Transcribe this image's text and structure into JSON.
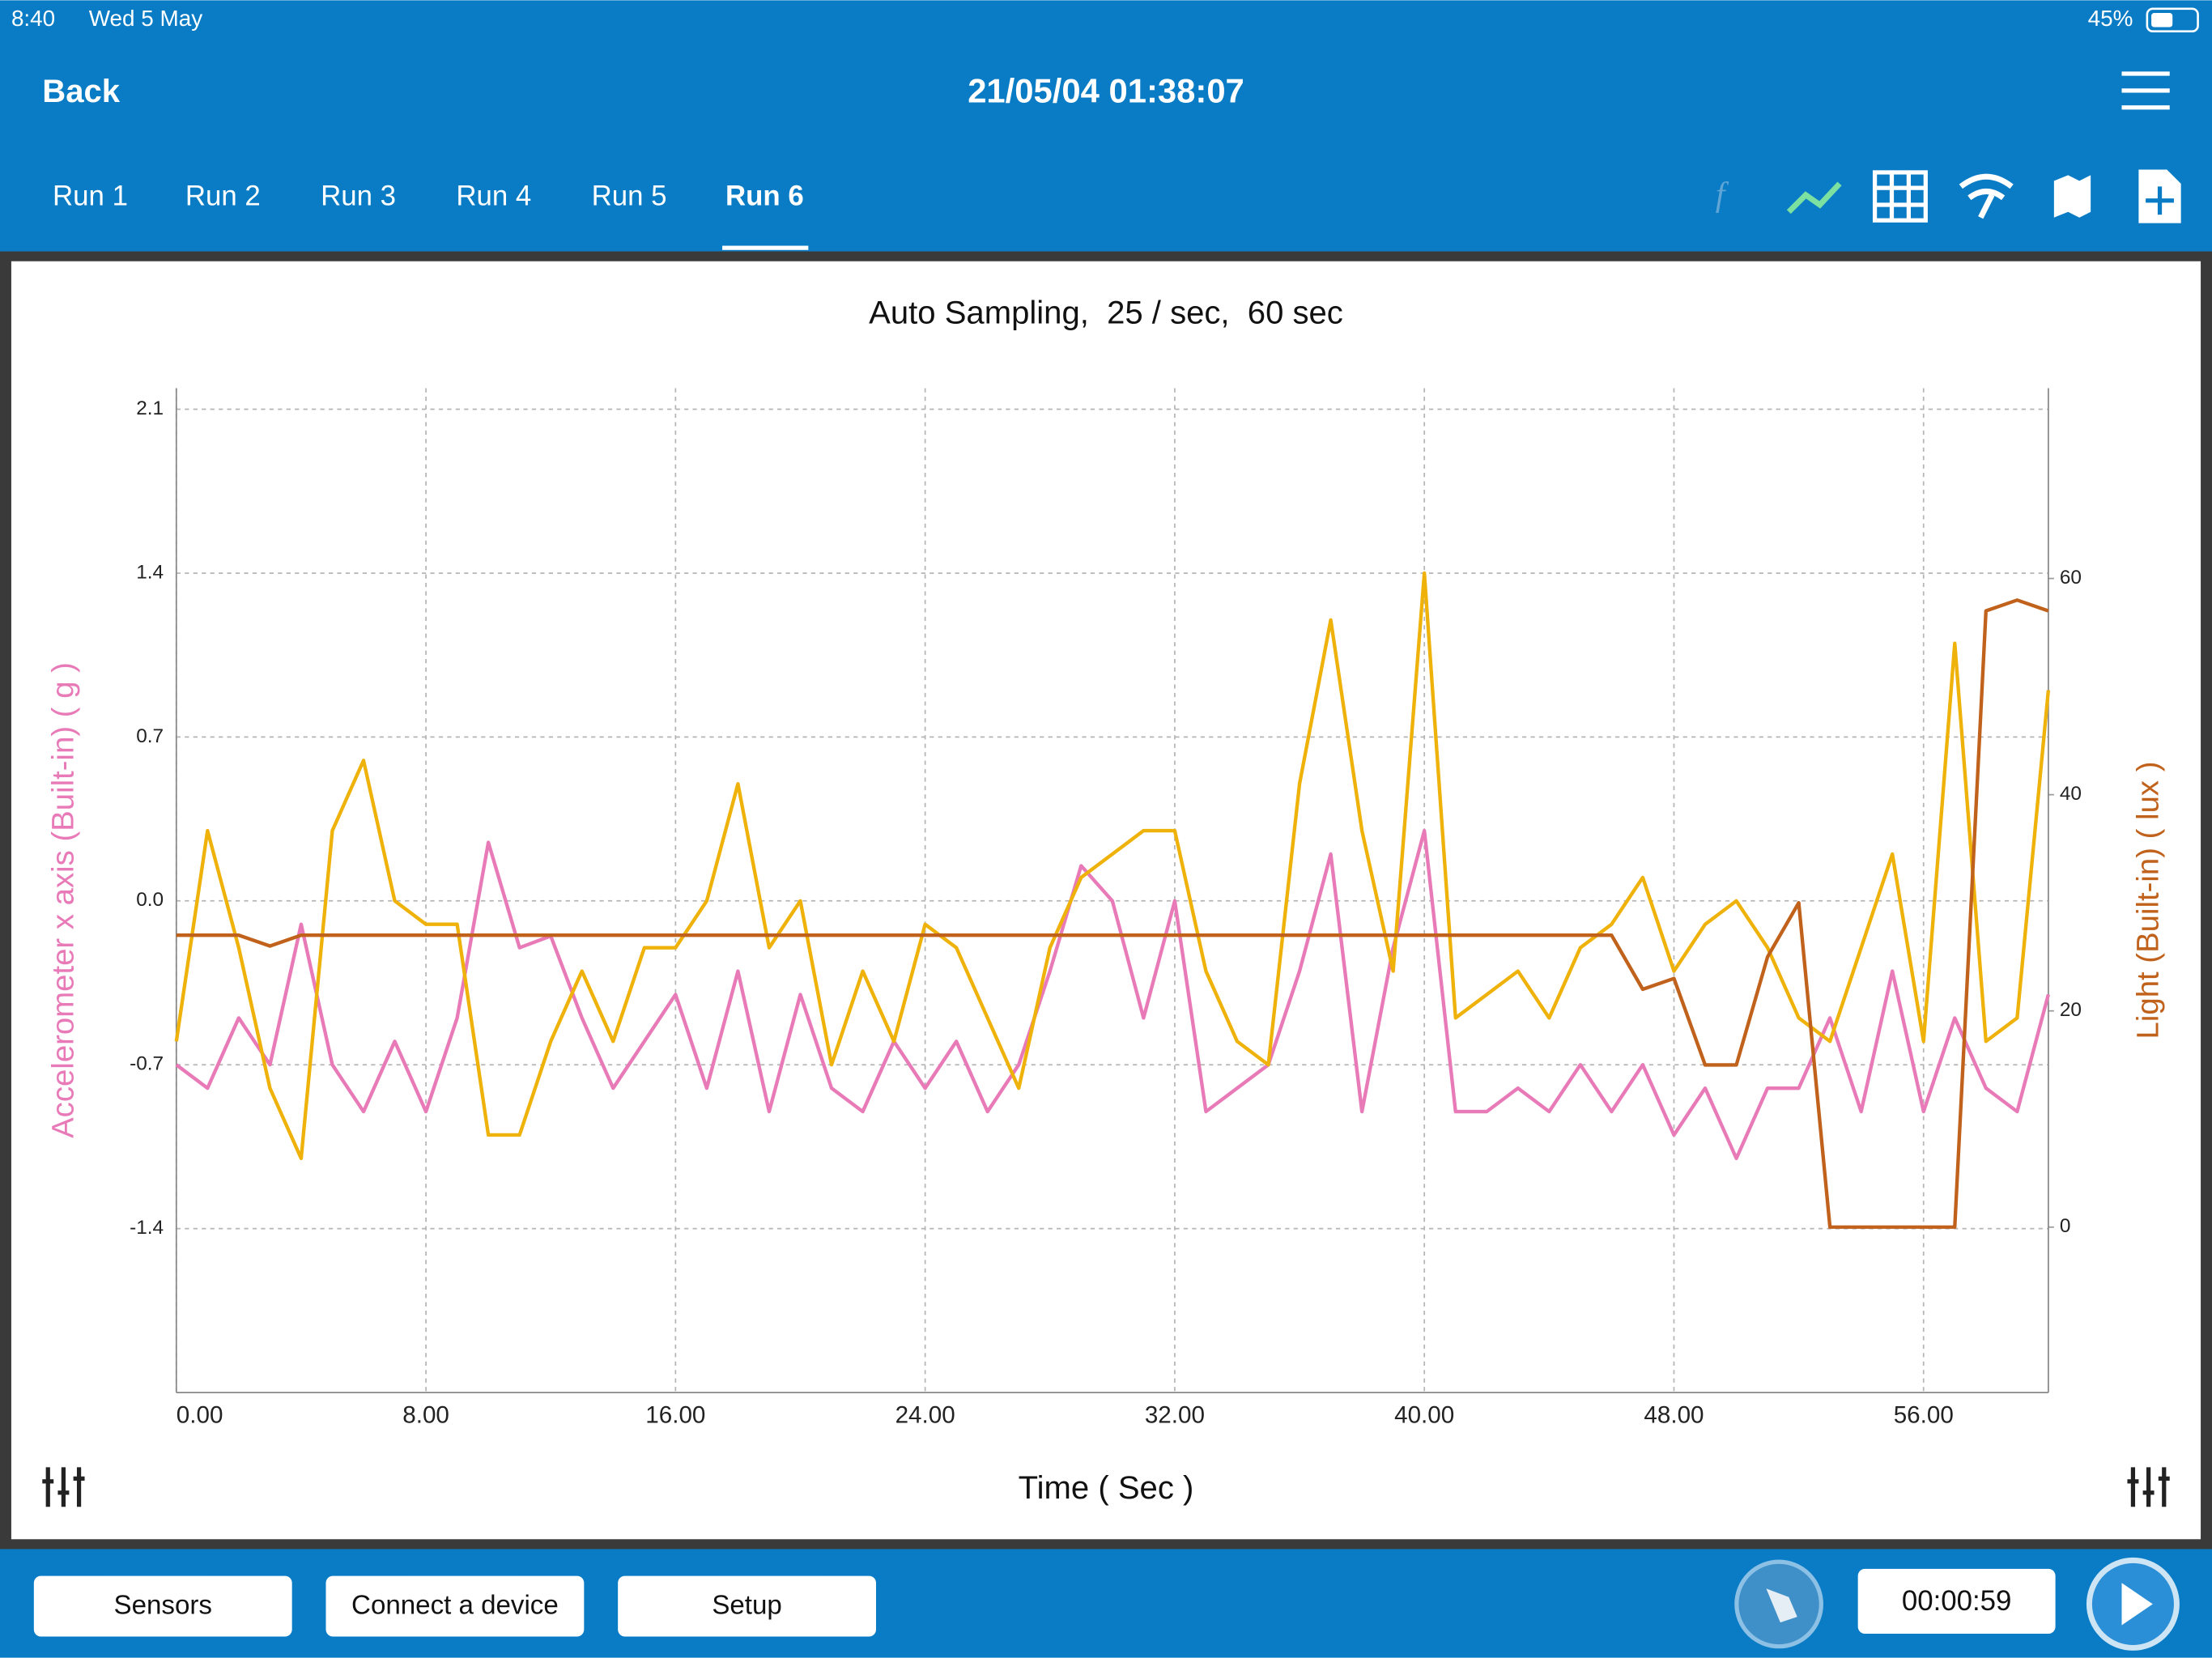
{
  "status_bar": {
    "time": "8:40",
    "date": "Wed 5 May",
    "battery": "45%"
  },
  "header": {
    "back": "Back",
    "title": "21/05/04 01:38:07"
  },
  "tabs": [
    "Run 1",
    "Run 2",
    "Run 3",
    "Run 4",
    "Run 5",
    "Run 6"
  ],
  "chart_data": {
    "type": "line",
    "title": "Auto Sampling,  25 / sec,  60 sec",
    "xlabel": "Time ( Sec )",
    "ylabel": "Accelerometer x axis (Built-in) ( g )",
    "y2label": "Light (Built-in) ( lux )",
    "x": [
      0,
      1,
      2,
      3,
      4,
      5,
      6,
      7,
      8,
      9,
      10,
      11,
      12,
      13,
      14,
      15,
      16,
      17,
      18,
      19,
      20,
      21,
      22,
      23,
      24,
      25,
      26,
      27,
      28,
      29,
      30,
      31,
      32,
      33,
      34,
      35,
      36,
      37,
      38,
      39,
      40,
      41,
      42,
      43,
      44,
      45,
      46,
      47,
      48,
      49,
      50,
      51,
      52,
      53,
      54,
      55,
      56,
      57,
      58,
      59,
      60
    ],
    "series": [
      {
        "color": "#e87ab8",
        "axis": "y",
        "values": [
          -0.7,
          -0.8,
          -0.5,
          -0.7,
          -0.1,
          -0.7,
          -0.9,
          -0.6,
          -0.9,
          -0.5,
          0.25,
          -0.2,
          -0.15,
          -0.5,
          -0.8,
          -0.6,
          -0.4,
          -0.8,
          -0.3,
          -0.9,
          -0.4,
          -0.8,
          -0.9,
          -0.6,
          -0.8,
          -0.6,
          -0.9,
          -0.7,
          -0.3,
          0.15,
          0.0,
          -0.5,
          0.0,
          -0.9,
          -0.8,
          -0.7,
          -0.3,
          0.2,
          -0.9,
          -0.2,
          0.3,
          -0.9,
          -0.9,
          -0.8,
          -0.9,
          -0.7,
          -0.9,
          -0.7,
          -1.0,
          -0.8,
          -1.1,
          -0.8,
          -0.8,
          -0.5,
          -0.9,
          -0.3,
          -0.9,
          -0.5,
          -0.8,
          -0.9,
          -0.4
        ]
      },
      {
        "color": "#efb20a",
        "axis": "y",
        "values": [
          -0.6,
          0.3,
          -0.2,
          -0.8,
          -1.1,
          0.3,
          0.6,
          0.0,
          -0.1,
          -0.1,
          -1.0,
          -1.0,
          -0.6,
          -0.3,
          -0.6,
          -0.2,
          -0.2,
          0.0,
          0.5,
          -0.2,
          0.0,
          -0.7,
          -0.3,
          -0.6,
          -0.1,
          -0.2,
          -0.5,
          -0.8,
          -0.2,
          0.1,
          0.2,
          0.3,
          0.3,
          -0.3,
          -0.6,
          -0.7,
          0.5,
          1.2,
          0.3,
          -0.3,
          1.4,
          -0.5,
          -0.4,
          -0.3,
          -0.5,
          -0.2,
          -0.1,
          0.1,
          -0.3,
          -0.1,
          0.0,
          -0.2,
          -0.5,
          -0.6,
          -0.2,
          0.2,
          -0.6,
          1.1,
          -0.6,
          -0.5,
          0.9
        ]
      },
      {
        "color": "#c0621c",
        "axis": "y2",
        "values": [
          27,
          27,
          27,
          26,
          27,
          27,
          27,
          27,
          27,
          27,
          27,
          27,
          27,
          27,
          27,
          27,
          27,
          27,
          27,
          27,
          27,
          27,
          27,
          27,
          27,
          27,
          27,
          27,
          27,
          27,
          27,
          27,
          27,
          27,
          27,
          27,
          27,
          27,
          27,
          27,
          27,
          27,
          27,
          27,
          27,
          27,
          27,
          22,
          23,
          15,
          15,
          25,
          30,
          0,
          0,
          0,
          0,
          0,
          57,
          58,
          57
        ]
      }
    ],
    "xlim": [
      0,
      60
    ],
    "xticks": [
      {
        "value": 0,
        "label": "0.00"
      },
      {
        "value": 8,
        "label": "8.00"
      },
      {
        "value": 16,
        "label": "16.00"
      },
      {
        "value": 24,
        "label": "24.00"
      },
      {
        "value": 32,
        "label": "32.00"
      },
      {
        "value": 40,
        "label": "40.00"
      },
      {
        "value": 48,
        "label": "48.00"
      },
      {
        "value": 56,
        "label": "56.00"
      }
    ],
    "ylim": [
      -2.1,
      2.19
    ],
    "yticks": [
      2.1,
      1.4,
      0.7,
      {
        "value": 0,
        "label": "0.0"
      },
      -0.7,
      -1.4
    ],
    "y2lim": [
      -15.3,
      77.6
    ],
    "y2ticks": [
      60,
      40,
      20,
      0
    ],
    "grid": true
  },
  "bottom_bar": {
    "buttons": [
      "Sensors",
      "Connect a device",
      "Setup"
    ],
    "timer": "00:00:59"
  }
}
